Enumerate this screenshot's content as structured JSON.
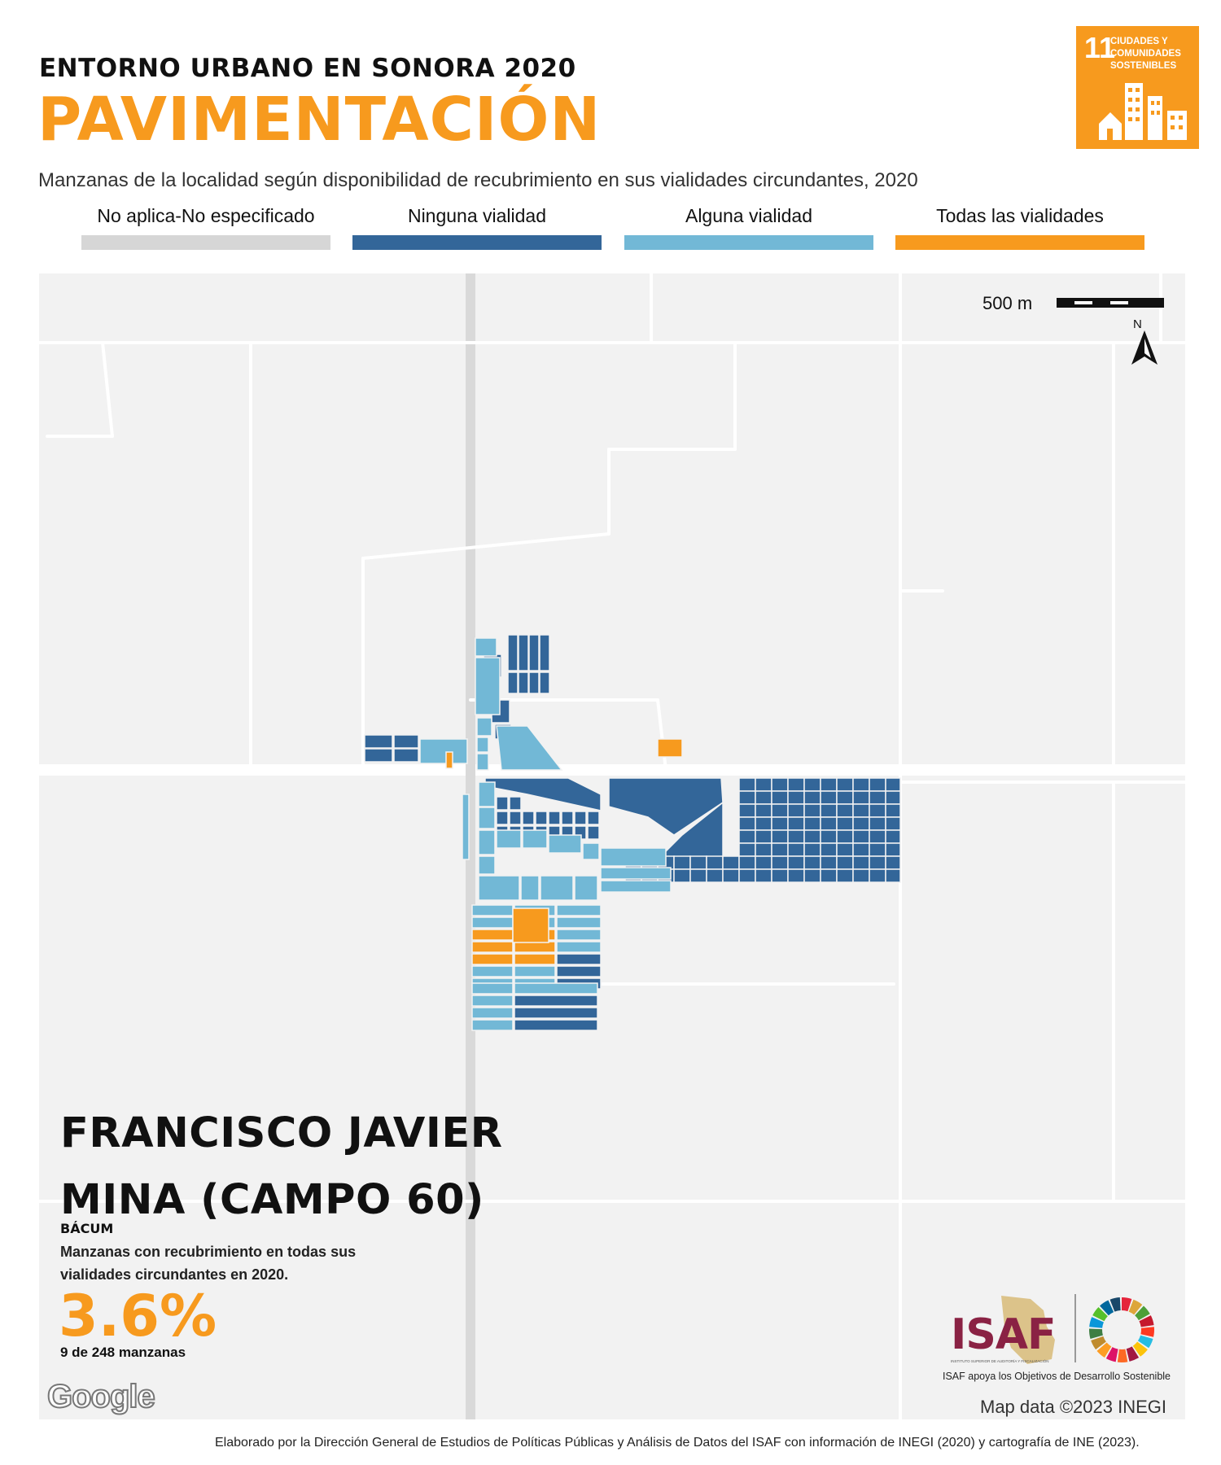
{
  "header": {
    "kicker": "ENTORNO URBANO EN SONORA 2020",
    "title": "PAVIMENTACIÓN",
    "subtitle": "Manzanas de la localidad según disponibilidad de recubrimiento en sus vialidades circundantes, 2020"
  },
  "sdg_badge": {
    "number": "11",
    "label": "CIUDADES Y COMUNIDADES SOSTENIBLES",
    "color": "#f79a1e"
  },
  "legend": [
    {
      "label": "No aplica-No especificado",
      "color": "#d6d6d6"
    },
    {
      "label": "Ninguna vialidad",
      "color": "#336699"
    },
    {
      "label": "Alguna vialidad",
      "color": "#72b8d6"
    },
    {
      "label": "Todas las vialidades",
      "color": "#f79a1e"
    }
  ],
  "map": {
    "scale_label": "500 m",
    "north_label": "N",
    "attribution": "Map data ©2023 INEGI",
    "provider_logo": "Google"
  },
  "locality": {
    "name": "FRANCISCO JAVIER MINA (CAMPO 60)",
    "municipality": "BÁCUM",
    "kpi_description": "Manzanas con recubrimiento en todas sus vialidades circundantes en 2020.",
    "kpi_value": "3.6%",
    "kpi_count": "9 de 248 manzanas"
  },
  "isaf": {
    "logo_text": "ISAF",
    "logo_subtext": "INSTITUTO SUPERIOR DE AUDITORÍA Y FISCALIZACIÓN",
    "note": "ISAF apoya los Objetivos de Desarrollo Sostenible"
  },
  "footer": {
    "credits": "Elaborado por la Dirección General de Estudios de Políticas Públicas y Análisis de Datos del ISAF con información de INEGI (2020) y cartografía de INE (2023)."
  }
}
